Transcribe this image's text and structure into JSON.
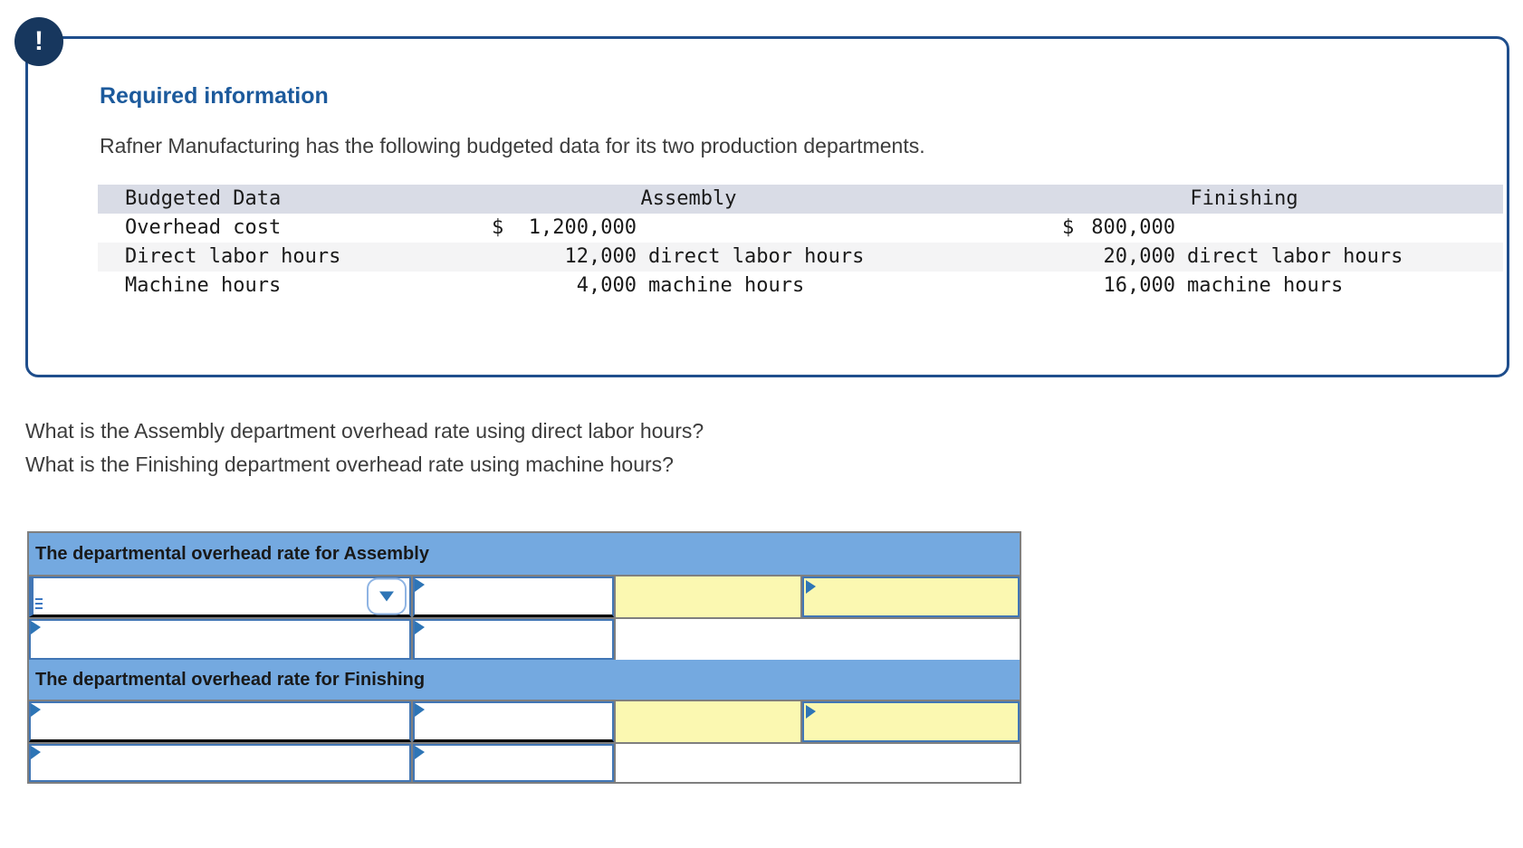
{
  "alert": {
    "icon": "!"
  },
  "info_box": {
    "heading": "Required information",
    "description": "Rafner Manufacturing has the following budgeted data for its two production departments.",
    "budget_table": {
      "headers": {
        "label": "Budgeted Data",
        "assembly": "Assembly",
        "finishing": "Finishing"
      },
      "rows": [
        {
          "label": "Overhead cost",
          "assembly": {
            "currency": "$",
            "amount": "1,200,000",
            "unit": ""
          },
          "finishing": {
            "currency": "$",
            "amount": "800,000",
            "unit": ""
          }
        },
        {
          "label": "Direct labor hours",
          "assembly": {
            "currency": "",
            "amount": "12,000",
            "unit": "direct labor hours"
          },
          "finishing": {
            "currency": "",
            "amount": "20,000",
            "unit": "direct labor hours"
          }
        },
        {
          "label": "Machine hours",
          "assembly": {
            "currency": "",
            "amount": "4,000",
            "unit": "machine hours"
          },
          "finishing": {
            "currency": "",
            "amount": "16,000",
            "unit": "machine hours"
          }
        }
      ]
    }
  },
  "questions": {
    "line1": "What is the Assembly department overhead rate using direct labor hours?",
    "line2": "What is the Finishing department overhead rate using machine hours?"
  },
  "answer_table": {
    "assembly_header": "The departmental overhead rate for Assembly",
    "finishing_header": "The departmental overhead rate for Finishing",
    "dropdown_selected": "",
    "inputs": {
      "a1_c2": "",
      "a2_c1": "",
      "a2_c2": "",
      "f1_c1": "",
      "f1_c2": "",
      "f2_c1": "",
      "f2_c2": ""
    }
  },
  "colors": {
    "alert_navy": "#17375E",
    "box_border_blue": "#1F4E8C",
    "heading_blue": "#1C5A9C",
    "table_header_band": "#D9DCE6",
    "table_alt_row": "#F4F4F5",
    "answer_header_blue": "#74A9E0",
    "input_border_blue": "#4176B5",
    "marker_blue": "#2E75B6",
    "highlight_yellow": "#FBF8B1",
    "grid_gray": "#7F7F7F"
  }
}
